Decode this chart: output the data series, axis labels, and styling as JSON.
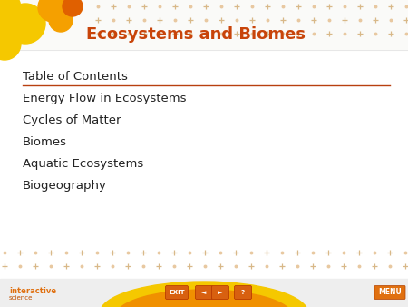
{
  "title": "Ecosystems and Biomes",
  "title_color": "#C8440A",
  "title_fontsize": 13,
  "bg_color": "#FFFFFF",
  "toc_header": "Table of Contents",
  "toc_items": [
    "Energy Flow in Ecosystems",
    "Cycles of Matter",
    "Biomes",
    "Aquatic Ecosystems",
    "Biogeography"
  ],
  "toc_text_color": "#222222",
  "toc_header_color": "#222222",
  "separator_color": "#B84010",
  "dot_color": "#E8C8A0",
  "cross_color": "#D8B888",
  "footer_yellow": "#F5C800",
  "footer_orange": "#F09000",
  "footer_btn_color": "#D86010",
  "interactive_color": "#E07010",
  "menu_btn_color": "#E07010",
  "blob1_color": "#F5C800",
  "blob2_color": "#F5A000",
  "blob3_color": "#E06000",
  "blob4_color": "#F5C800",
  "blob5_color": "#F5A800"
}
